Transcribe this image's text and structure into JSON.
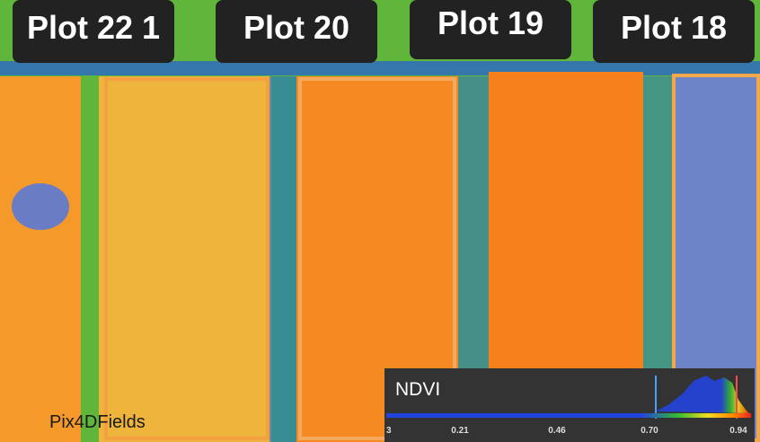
{
  "plots": [
    "Plot 22  1",
    "Plot 20",
    "Plot 19",
    "Plot 18"
  ],
  "watermark": "Pix4DFields",
  "legend": {
    "title": "NDVI",
    "ticks": [
      "3",
      "0.21",
      "0.46",
      "0.70",
      "0.94"
    ]
  }
}
